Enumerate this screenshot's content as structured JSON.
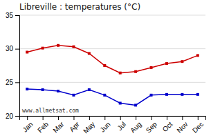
{
  "chart_data": {
    "type": "line",
    "title": "Libreville : temperatures (°C)",
    "categories": [
      "Jan",
      "Feb",
      "Mar",
      "Apr",
      "May",
      "Jun",
      "Jul",
      "Aug",
      "Sep",
      "Oct",
      "Nov",
      "Dec"
    ],
    "series": [
      {
        "color": "#cc0000",
        "marker": "square",
        "values": [
          29.5,
          30.1,
          30.5,
          30.3,
          29.3,
          27.5,
          26.4,
          26.6,
          27.2,
          27.8,
          28.1,
          29.0
        ]
      },
      {
        "color": "#0000cc",
        "marker": "square",
        "values": [
          24.0,
          23.9,
          23.7,
          23.1,
          23.9,
          23.1,
          21.9,
          21.6,
          23.1,
          23.2,
          23.2,
          23.2
        ]
      }
    ],
    "ylim": [
      20,
      35
    ],
    "yticks": [
      20,
      25,
      30,
      35
    ],
    "grid": true,
    "annotation": "www.allmetsat.com"
  }
}
